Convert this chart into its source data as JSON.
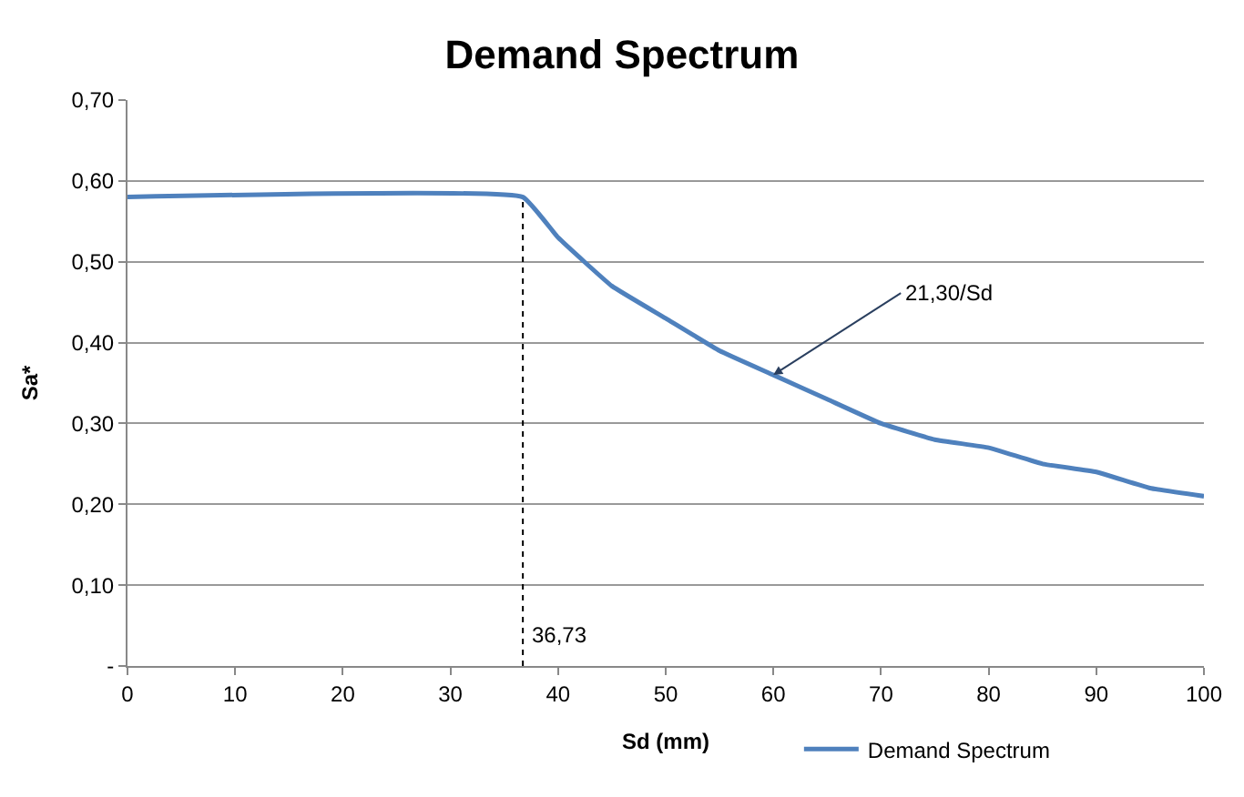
{
  "chart_data": {
    "type": "line",
    "title": "Demand Spectrum",
    "xlabel": "Sd (mm)",
    "ylabel": "Sa*",
    "x": [
      0,
      36.73,
      40,
      45,
      50,
      55,
      60,
      65,
      70,
      75,
      80,
      85,
      90,
      95,
      100
    ],
    "series": [
      {
        "name": "Demand Spectrum",
        "color": "#4f81bd",
        "values": [
          0.58,
          0.58,
          0.53,
          0.47,
          0.43,
          0.39,
          0.36,
          0.33,
          0.3,
          0.28,
          0.27,
          0.25,
          0.24,
          0.22,
          0.21
        ]
      }
    ],
    "xlim": [
      0,
      100
    ],
    "xticks": [
      0,
      10,
      20,
      30,
      40,
      50,
      60,
      70,
      80,
      90,
      100
    ],
    "ylim": [
      0,
      0.7
    ],
    "yticks": [
      {
        "value": 0,
        "label": "-"
      },
      {
        "value": 0.1,
        "label": "0,10"
      },
      {
        "value": 0.2,
        "label": "0,20"
      },
      {
        "value": 0.3,
        "label": "0,30"
      },
      {
        "value": 0.4,
        "label": "0,40"
      },
      {
        "value": 0.5,
        "label": "0,50"
      },
      {
        "value": 0.6,
        "label": "0,60"
      },
      {
        "value": 0.7,
        "label": "0,70"
      }
    ],
    "ref_lines": [
      {
        "axis": "x",
        "value": 36.73,
        "label": "36,73",
        "color": "#000000",
        "line_style": "dotted"
      }
    ],
    "annotations": [
      {
        "text": "21,30/Sd",
        "x": 60,
        "y": 0.36
      }
    ],
    "grid": "y",
    "legend": "bottom",
    "marker": "none",
    "line_style": "solid"
  }
}
